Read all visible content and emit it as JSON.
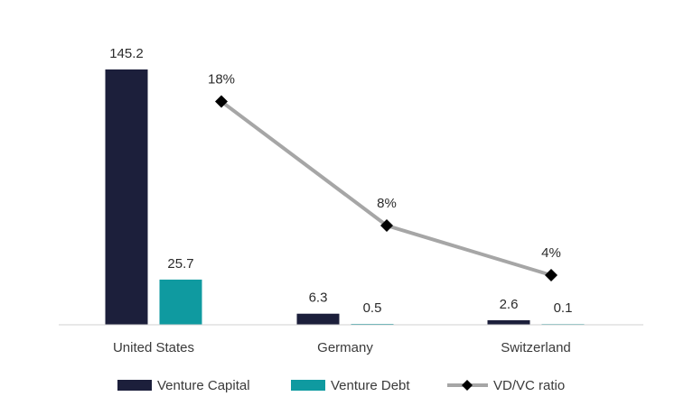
{
  "chart_data": {
    "type": "bar",
    "categories": [
      "United States",
      "Germany",
      "Switzerland"
    ],
    "series": [
      {
        "name": "Venture Capital",
        "type": "bar",
        "axis": "left",
        "values": [
          145.2,
          6.3,
          2.6
        ],
        "labels": [
          "145.2",
          "6.3",
          "2.6"
        ],
        "color": "#1c1f3b"
      },
      {
        "name": "Venture Debt",
        "type": "bar",
        "axis": "left",
        "values": [
          25.7,
          0.5,
          0.1
        ],
        "labels": [
          "25.7",
          "0.5",
          "0.1"
        ],
        "color": "#0f9aa0"
      },
      {
        "name": "VD/VC ratio",
        "type": "line",
        "axis": "right",
        "values": [
          18,
          8,
          4
        ],
        "labels": [
          "18%",
          "8%",
          "4%"
        ],
        "color": "#a6a6a6",
        "marker": "diamond",
        "marker_color": "#000000"
      }
    ],
    "ylim_left": [
      0,
      145.2
    ],
    "ylim_right": [
      0,
      24
    ],
    "grid": false,
    "legend": "bottom",
    "title": "",
    "xlabel": "",
    "ylabel": ""
  }
}
